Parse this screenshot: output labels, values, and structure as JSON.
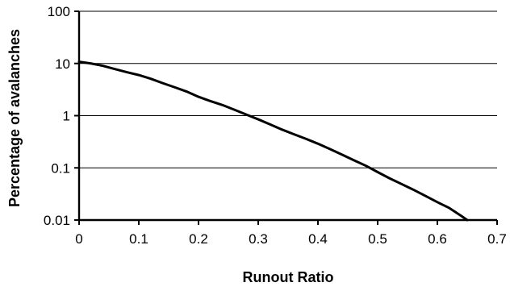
{
  "chart_data": {
    "type": "line",
    "title": "",
    "xlabel": "Runout Ratio",
    "ylabel": "Percentage of avalanches",
    "xlim": [
      0,
      0.7
    ],
    "ylim": [
      0.01,
      100
    ],
    "y_scale": "log",
    "x_ticks": [
      "0",
      "0.1",
      "0.2",
      "0.3",
      "0.4",
      "0.5",
      "0.6",
      "0.7"
    ],
    "y_ticks": [
      "0.01",
      "0.1",
      "1",
      "10",
      "100"
    ],
    "grid": "horizontal major lines",
    "legend": "none",
    "line_color": "#000000",
    "series": [
      {
        "x": [
          0,
          0.02,
          0.04,
          0.06,
          0.08,
          0.1,
          0.12,
          0.14,
          0.16,
          0.18,
          0.2,
          0.22,
          0.24,
          0.26,
          0.28,
          0.3,
          0.32,
          0.34,
          0.36,
          0.38,
          0.4,
          0.42,
          0.44,
          0.46,
          0.48,
          0.5,
          0.52,
          0.54,
          0.56,
          0.58,
          0.6,
          0.62,
          0.64,
          0.65
        ],
        "y": [
          10.8,
          10.0,
          9.0,
          7.8,
          6.8,
          6.0,
          5.1,
          4.2,
          3.5,
          2.9,
          2.3,
          1.9,
          1.6,
          1.3,
          1.05,
          0.85,
          0.68,
          0.54,
          0.44,
          0.36,
          0.29,
          0.23,
          0.18,
          0.14,
          0.11,
          0.083,
          0.063,
          0.049,
          0.038,
          0.029,
          0.022,
          0.017,
          0.012,
          0.01
        ]
      }
    ]
  }
}
